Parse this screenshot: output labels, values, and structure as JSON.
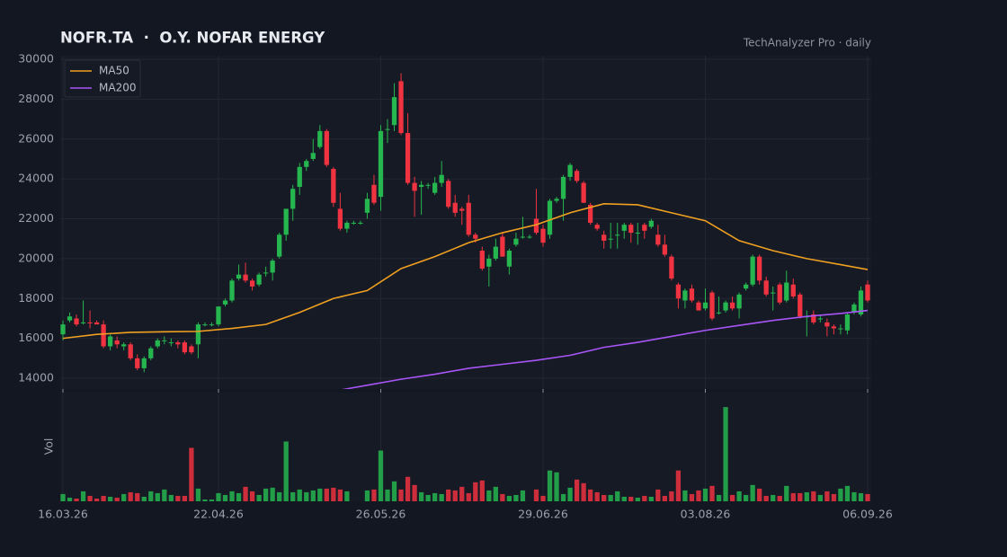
{
  "chart_data": {
    "type": "candlestick",
    "title": "NOFR.TA  ·  O.Y. NOFAR ENERGY",
    "subtitle": "TechAnalyzer Pro · daily",
    "up_color": "#26b64f",
    "down_color": "#ef3340",
    "ylim": [
      13460,
      30180
    ],
    "yticks": [
      14000,
      16000,
      18000,
      20000,
      22000,
      24000,
      26000,
      28000,
      30000
    ],
    "xlim": [
      0,
      119
    ],
    "xticks": [
      {
        "value": 0,
        "label": "16.03.26"
      },
      {
        "value": 23,
        "label": "22.04.26"
      },
      {
        "value": 47,
        "label": "26.05.26"
      },
      {
        "value": 71,
        "label": "29.06.26"
      },
      {
        "value": 95,
        "label": "03.08.26"
      },
      {
        "value": 119,
        "label": "06.09.26"
      }
    ],
    "grid": true,
    "legend": "upper left",
    "ohlc": [
      [
        16200,
        16900,
        15900,
        16700
      ],
      [
        16900,
        17300,
        16800,
        17100
      ],
      [
        17000,
        17200,
        16600,
        16700
      ],
      [
        16800,
        17900,
        16700,
        16800
      ],
      [
        16800,
        17400,
        16500,
        16750
      ],
      [
        16800,
        16900,
        16700,
        16700
      ],
      [
        16700,
        16900,
        15500,
        15600
      ],
      [
        15600,
        16200,
        15400,
        16100
      ],
      [
        15900,
        16100,
        15500,
        15700
      ],
      [
        15600,
        15800,
        15400,
        15700
      ],
      [
        15700,
        15800,
        14900,
        15000
      ],
      [
        15000,
        15200,
        14400,
        14500
      ],
      [
        14500,
        15100,
        14300,
        15000
      ],
      [
        15000,
        15600,
        14900,
        15500
      ],
      [
        15600,
        16000,
        15500,
        15900
      ],
      [
        15900,
        16100,
        15700,
        15900
      ],
      [
        15800,
        16000,
        15600,
        15800
      ],
      [
        15800,
        15900,
        15500,
        15700
      ],
      [
        15800,
        15900,
        15200,
        15300
      ],
      [
        15600,
        15700,
        15200,
        15300
      ],
      [
        15700,
        16800,
        15000,
        16700
      ],
      [
        16700,
        16800,
        16600,
        16700
      ],
      [
        16700,
        16800,
        16600,
        16700
      ],
      [
        16700,
        17600,
        16600,
        17600
      ],
      [
        17700,
        18000,
        17600,
        17900
      ],
      [
        17900,
        19000,
        17800,
        18900
      ],
      [
        19000,
        19700,
        18900,
        19200
      ],
      [
        19200,
        19800,
        18800,
        18900
      ],
      [
        18900,
        19000,
        18400,
        18600
      ],
      [
        18700,
        19300,
        18600,
        19200
      ],
      [
        19300,
        19600,
        19100,
        19300
      ],
      [
        19300,
        20000,
        18900,
        19900
      ],
      [
        20100,
        21300,
        20000,
        21200
      ],
      [
        21200,
        22500,
        20900,
        22500
      ],
      [
        22500,
        23700,
        21900,
        23500
      ],
      [
        23600,
        24800,
        23200,
        24600
      ],
      [
        24600,
        25000,
        24400,
        24900
      ],
      [
        25000,
        26000,
        24900,
        25300
      ],
      [
        25600,
        26700,
        25500,
        26400
      ],
      [
        26400,
        26500,
        24600,
        24700
      ],
      [
        24500,
        24600,
        22600,
        22800
      ],
      [
        22500,
        23300,
        21400,
        21500
      ],
      [
        21500,
        21900,
        21300,
        21800
      ],
      [
        21800,
        21900,
        21700,
        21800
      ],
      [
        21800,
        21900,
        21700,
        21800
      ],
      [
        22300,
        23300,
        22000,
        23000
      ],
      [
        23700,
        24200,
        22700,
        22800
      ],
      [
        23100,
        26700,
        22400,
        26400
      ],
      [
        26500,
        27000,
        25800,
        26500
      ],
      [
        26700,
        28800,
        26400,
        28100
      ],
      [
        28900,
        29300,
        26200,
        26300
      ],
      [
        26300,
        27300,
        23700,
        23800
      ],
      [
        23800,
        24100,
        22100,
        23400
      ],
      [
        23600,
        23900,
        22200,
        23700
      ],
      [
        23700,
        23800,
        23500,
        23700
      ],
      [
        23300,
        24100,
        23200,
        23800
      ],
      [
        23800,
        24900,
        23600,
        24200
      ],
      [
        23900,
        24000,
        22500,
        22600
      ],
      [
        22800,
        23200,
        22100,
        22300
      ],
      [
        22500,
        22600,
        21700,
        22400
      ],
      [
        22800,
        23200,
        21100,
        21200
      ],
      [
        21200,
        21300,
        20800,
        21000
      ],
      [
        20400,
        20600,
        19400,
        19500
      ],
      [
        19600,
        20200,
        18600,
        20000
      ],
      [
        20000,
        21000,
        19900,
        20600
      ],
      [
        21100,
        21300,
        20100,
        20100
      ],
      [
        19600,
        20500,
        19200,
        20400
      ],
      [
        20700,
        21300,
        20600,
        21000
      ],
      [
        21100,
        22100,
        21000,
        21100
      ],
      [
        21100,
        21200,
        21000,
        21100
      ],
      [
        22000,
        23500,
        21200,
        21300
      ],
      [
        21500,
        21700,
        20600,
        20800
      ],
      [
        21200,
        23000,
        21000,
        22900
      ],
      [
        22900,
        23100,
        22800,
        23000
      ],
      [
        23000,
        24200,
        21900,
        24100
      ],
      [
        24100,
        24800,
        23900,
        24700
      ],
      [
        24400,
        24500,
        23800,
        23900
      ],
      [
        23800,
        23900,
        22800,
        22800
      ],
      [
        22700,
        22800,
        21700,
        21800
      ],
      [
        21700,
        21800,
        21400,
        21500
      ],
      [
        21200,
        21400,
        20500,
        20900
      ],
      [
        21000,
        21800,
        20500,
        21000
      ],
      [
        21200,
        21800,
        20500,
        21200
      ],
      [
        21400,
        21800,
        21000,
        21700
      ],
      [
        21700,
        21800,
        20800,
        21300
      ],
      [
        21300,
        21800,
        20700,
        21300
      ],
      [
        21700,
        21800,
        21000,
        21400
      ],
      [
        21600,
        22000,
        21500,
        21900
      ],
      [
        21200,
        21700,
        20600,
        20700
      ],
      [
        20700,
        21200,
        20100,
        20200
      ],
      [
        20100,
        20200,
        18900,
        19000
      ],
      [
        18700,
        18800,
        17500,
        18000
      ],
      [
        17900,
        18500,
        17500,
        18400
      ],
      [
        18500,
        18700,
        17800,
        17900
      ],
      [
        17800,
        17900,
        17400,
        17400
      ],
      [
        17500,
        18500,
        17400,
        17800
      ],
      [
        18300,
        18400,
        16900,
        17000
      ],
      [
        17300,
        18100,
        17200,
        17300
      ],
      [
        17400,
        17900,
        17300,
        17800
      ],
      [
        17800,
        18100,
        17400,
        17500
      ],
      [
        17500,
        18300,
        17000,
        18200
      ],
      [
        18500,
        18800,
        18400,
        18700
      ],
      [
        18700,
        20200,
        18600,
        20100
      ],
      [
        20100,
        20200,
        18700,
        18900
      ],
      [
        18900,
        19100,
        18100,
        18200
      ],
      [
        18300,
        18600,
        17400,
        18300
      ],
      [
        18700,
        18800,
        17700,
        17800
      ],
      [
        17900,
        19400,
        17800,
        18800
      ],
      [
        18700,
        19000,
        18000,
        18100
      ],
      [
        18200,
        18300,
        17000,
        17100
      ],
      [
        17100,
        17400,
        16100,
        17100
      ],
      [
        17200,
        17400,
        16700,
        16800
      ],
      [
        17000,
        17200,
        16800,
        17000
      ],
      [
        16800,
        17000,
        16100,
        16600
      ],
      [
        16600,
        16700,
        16200,
        16500
      ],
      [
        16500,
        16700,
        16200,
        16500
      ],
      [
        16400,
        17300,
        16200,
        17200
      ],
      [
        17300,
        17800,
        17200,
        17700
      ],
      [
        17200,
        18600,
        17100,
        18400
      ],
      [
        18700,
        18900,
        17800,
        17900
      ]
    ],
    "lines": [
      {
        "name": "MA50",
        "color": "#f0a020",
        "x": [
          0,
          5,
          10,
          15,
          20,
          25,
          30,
          35,
          40,
          45,
          50,
          55,
          60,
          65,
          70,
          75,
          80,
          85,
          90,
          95,
          100,
          105,
          110,
          115,
          119
        ],
        "values": [
          16000,
          16200,
          16300,
          16330,
          16350,
          16500,
          16700,
          17300,
          18000,
          18400,
          19500,
          20100,
          20800,
          21300,
          21700,
          22300,
          22750,
          22700,
          22300,
          21900,
          20900,
          20400,
          20000,
          19700,
          19450
        ]
      },
      {
        "name": "MA200",
        "color": "#a855f7",
        "x": [
          40,
          45,
          50,
          55,
          60,
          65,
          70,
          75,
          80,
          85,
          90,
          95,
          100,
          105,
          110,
          115,
          119
        ],
        "values": [
          13350,
          13650,
          13950,
          14200,
          14500,
          14700,
          14900,
          15150,
          15550,
          15800,
          16100,
          16400,
          16650,
          16900,
          17100,
          17250,
          17400
        ]
      }
    ],
    "volume": {
      "label": "Vol",
      "ylim": [
        0,
        120
      ],
      "values": [
        8,
        4,
        3,
        11,
        6,
        3,
        6,
        5,
        4,
        8,
        10,
        9,
        5,
        11,
        9,
        13,
        7,
        6,
        6,
        59,
        14,
        2,
        2,
        9,
        7,
        11,
        9,
        16,
        11,
        7,
        14,
        15,
        10,
        66,
        10,
        13,
        10,
        12,
        14,
        14,
        15,
        13,
        11,
        0,
        0,
        12,
        13,
        56,
        13,
        22,
        13,
        27,
        18,
        10,
        7,
        9,
        8,
        13,
        12,
        16,
        9,
        21,
        23,
        12,
        16,
        8,
        6,
        7,
        12,
        0,
        13,
        6,
        34,
        32,
        8,
        15,
        24,
        20,
        13,
        10,
        7,
        7,
        11,
        5,
        5,
        4,
        6,
        5,
        13,
        6,
        11,
        34,
        12,
        8,
        12,
        14,
        17,
        7,
        104,
        7,
        11,
        7,
        18,
        14,
        6,
        7,
        6,
        17,
        9,
        9,
        10,
        11,
        7,
        11,
        8,
        14,
        17,
        10,
        9,
        8
      ]
    }
  }
}
